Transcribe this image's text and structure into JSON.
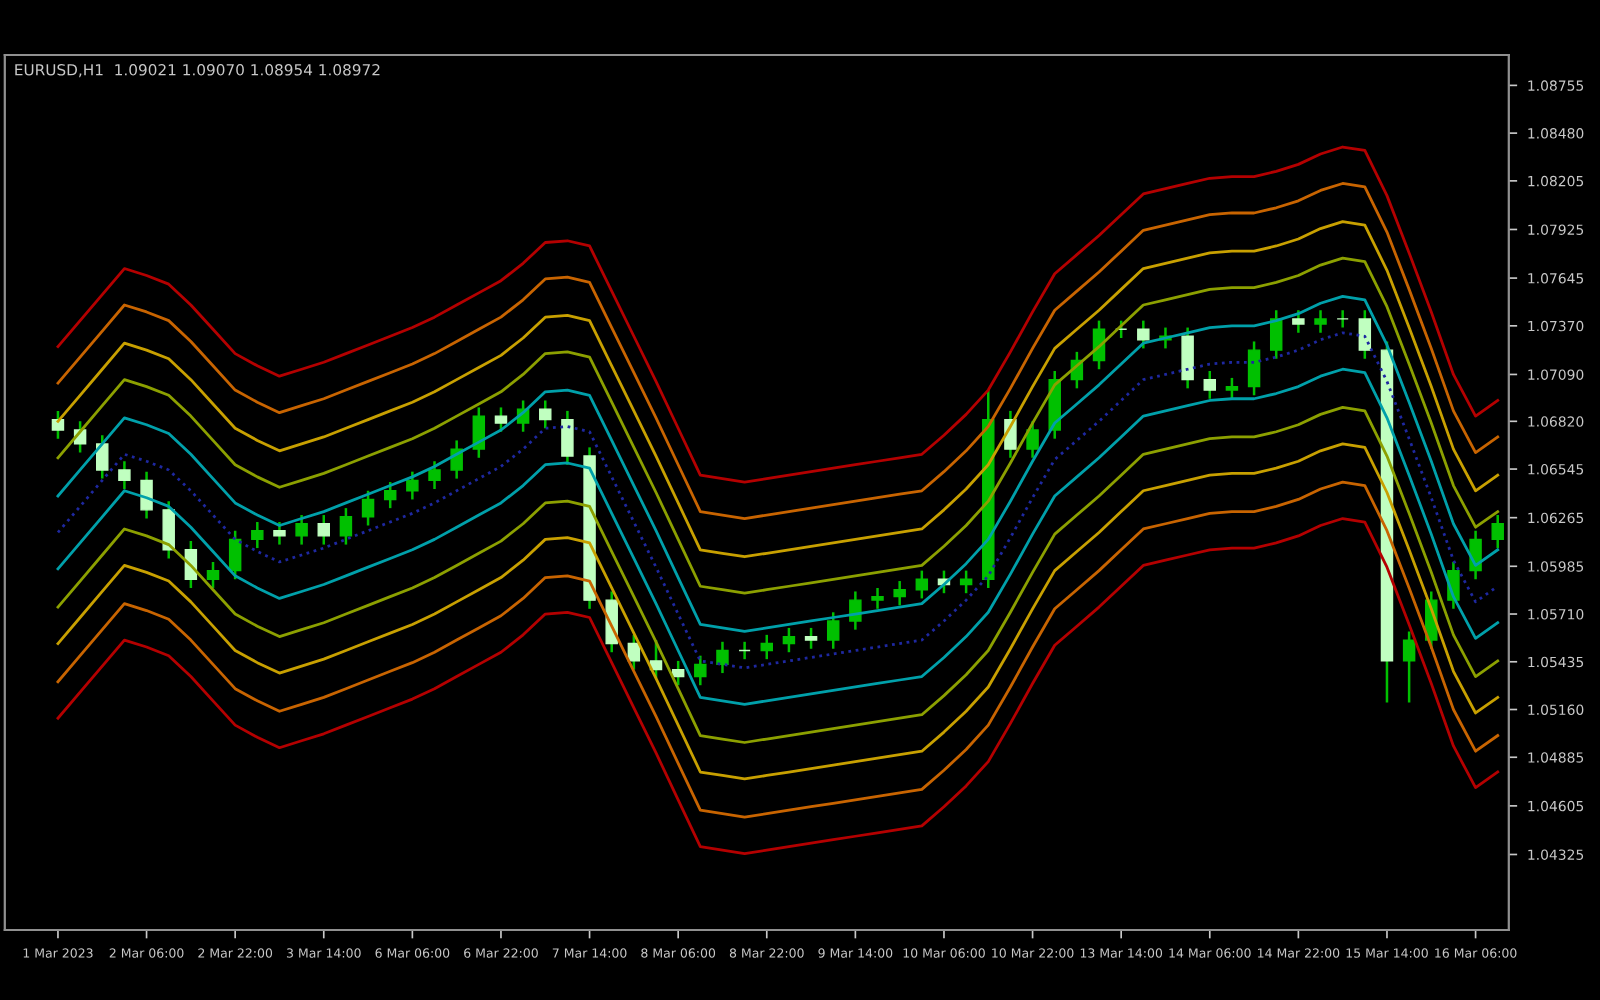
{
  "chart_data": {
    "type": "candlestick",
    "title": "EURUSD,H1  1.09021 1.09070 1.08954 1.08972",
    "categories": [
      "1 Mar 2023",
      null,
      null,
      null,
      "2 Mar 06:00",
      null,
      null,
      null,
      "2 Mar 22:00",
      null,
      null,
      null,
      "3 Mar 14:00",
      null,
      null,
      null,
      "6 Mar 06:00",
      null,
      null,
      null,
      "6 Mar 22:00",
      null,
      null,
      null,
      "7 Mar 14:00",
      null,
      null,
      null,
      "8 Mar 06:00",
      null,
      null,
      null,
      "8 Mar 22:00",
      null,
      null,
      null,
      "9 Mar 14:00",
      null,
      null,
      null,
      "10 Mar 06:00",
      null,
      null,
      null,
      "10 Mar 22:00",
      null,
      null,
      null,
      "13 Mar 14:00",
      null,
      null,
      null,
      "14 Mar 06:00",
      null,
      null,
      null,
      "14 Mar 22:00",
      null,
      null,
      null,
      "15 Mar 14:00",
      null,
      null,
      null,
      "16 Mar 06:00",
      null
    ],
    "ohlc": [
      [
        1.0683,
        1.0688,
        1.0672,
        1.0677
      ],
      [
        1.0677,
        1.0682,
        1.0664,
        1.0669
      ],
      [
        1.0669,
        1.0674,
        1.0649,
        1.0654
      ],
      [
        1.0654,
        1.0659,
        1.0643,
        1.0648
      ],
      [
        1.0648,
        1.0653,
        1.0626,
        1.0631
      ],
      [
        1.0631,
        1.0636,
        1.0603,
        1.0608
      ],
      [
        1.0608,
        1.0613,
        1.0586,
        1.0591
      ],
      [
        1.0591,
        1.0601,
        1.0586,
        1.0596
      ],
      [
        1.0596,
        1.0619,
        1.0591,
        1.0614
      ],
      [
        1.0614,
        1.0624,
        1.0609,
        1.0619
      ],
      [
        1.0619,
        1.0624,
        1.0611,
        1.0616
      ],
      [
        1.0616,
        1.0628,
        1.0611,
        1.0623
      ],
      [
        1.0623,
        1.0628,
        1.0611,
        1.0616
      ],
      [
        1.0616,
        1.0632,
        1.0611,
        1.0627
      ],
      [
        1.0627,
        1.0642,
        1.0622,
        1.0637
      ],
      [
        1.0637,
        1.0647,
        1.0632,
        1.0642
      ],
      [
        1.0642,
        1.0653,
        1.0637,
        1.0648
      ],
      [
        1.0648,
        1.0659,
        1.0643,
        1.0654
      ],
      [
        1.0654,
        1.0671,
        1.0649,
        1.0666
      ],
      [
        1.0666,
        1.069,
        1.0661,
        1.0685
      ],
      [
        1.0685,
        1.069,
        1.0676,
        1.0681
      ],
      [
        1.0681,
        1.0694,
        1.0676,
        1.0689
      ],
      [
        1.0689,
        1.0694,
        1.0678,
        1.0683
      ],
      [
        1.0683,
        1.0688,
        1.0657,
        1.0662
      ],
      [
        1.0662,
        1.0667,
        1.0574,
        1.0579
      ],
      [
        1.0579,
        1.0584,
        1.0549,
        1.0554
      ],
      [
        1.0554,
        1.0559,
        1.0539,
        1.0544
      ],
      [
        1.0544,
        1.0556,
        1.0534,
        1.0539
      ],
      [
        1.0539,
        1.0544,
        1.053,
        1.0535
      ],
      [
        1.0535,
        1.0547,
        1.053,
        1.0542
      ],
      [
        1.0542,
        1.0555,
        1.0537,
        1.055
      ],
      [
        1.055,
        1.0555,
        1.0545,
        1.055
      ],
      [
        1.055,
        1.0559,
        1.0545,
        1.0554
      ],
      [
        1.0554,
        1.0563,
        1.0549,
        1.0558
      ],
      [
        1.0558,
        1.0563,
        1.0551,
        1.0556
      ],
      [
        1.0556,
        1.0572,
        1.0551,
        1.0567
      ],
      [
        1.0567,
        1.0584,
        1.0562,
        1.0579
      ],
      [
        1.0579,
        1.0586,
        1.0574,
        1.0581
      ],
      [
        1.0581,
        1.059,
        1.0576,
        1.0585
      ],
      [
        1.0585,
        1.0596,
        1.058,
        1.0591
      ],
      [
        1.0591,
        1.0596,
        1.0583,
        1.0588
      ],
      [
        1.0588,
        1.0596,
        1.0583,
        1.0591
      ],
      [
        1.0591,
        1.07,
        1.0586,
        1.0683
      ],
      [
        1.0683,
        1.0688,
        1.0661,
        1.0666
      ],
      [
        1.0666,
        1.0682,
        1.0661,
        1.0677
      ],
      [
        1.0677,
        1.0711,
        1.0672,
        1.0706
      ],
      [
        1.0706,
        1.0722,
        1.0701,
        1.0717
      ],
      [
        1.0717,
        1.074,
        1.0712,
        1.0735
      ],
      [
        1.0735,
        1.074,
        1.073,
        1.0735
      ],
      [
        1.0735,
        1.074,
        1.0724,
        1.0729
      ],
      [
        1.0729,
        1.0736,
        1.0724,
        1.0731
      ],
      [
        1.0731,
        1.0736,
        1.0701,
        1.0706
      ],
      [
        1.0706,
        1.0711,
        1.0695,
        1.07
      ],
      [
        1.07,
        1.0707,
        1.0695,
        1.0702
      ],
      [
        1.0702,
        1.0728,
        1.0697,
        1.0723
      ],
      [
        1.0723,
        1.0746,
        1.0718,
        1.0741
      ],
      [
        1.0741,
        1.0746,
        1.0733,
        1.0738
      ],
      [
        1.0738,
        1.0746,
        1.0733,
        1.0741
      ],
      [
        1.0741,
        1.0746,
        1.0736,
        1.0741
      ],
      [
        1.0741,
        1.0746,
        1.0718,
        1.0723
      ],
      [
        1.0723,
        1.0728,
        1.052,
        1.0544
      ],
      [
        1.0544,
        1.0561,
        1.052,
        1.0556
      ],
      [
        1.0556,
        1.0584,
        1.0551,
        1.0579
      ],
      [
        1.0579,
        1.0601,
        1.0574,
        1.0596
      ],
      [
        1.0596,
        1.0619,
        1.0591,
        1.0614
      ],
      [
        1.0614,
        1.0628,
        1.0609,
        1.0623
      ]
    ],
    "colors": [
      "#c0ffc0",
      "#c0ffc0",
      "#c0ffc0",
      "#c0ffc0",
      "#c0ffc0",
      "#c0ffc0",
      "#c0ffc0",
      "#00c000",
      "#00c000",
      "#00c000",
      "#c0ffc0",
      "#00c000",
      "#c0ffc0",
      "#00c000",
      "#00c000",
      "#00c000",
      "#00c000",
      "#00c000",
      "#00c000",
      "#00c000",
      "#c0ffc0",
      "#00c000",
      "#c0ffc0",
      "#c0ffc0",
      "#c0ffc0",
      "#c0ffc0",
      "#c0ffc0",
      "#c0ffc0",
      "#c0ffc0",
      "#00c000",
      "#00c000",
      "#c0ffc0",
      "#00c000",
      "#00c000",
      "#c0ffc0",
      "#00c000",
      "#00c000",
      "#00c000",
      "#00c000",
      "#00c000",
      "#c0ffc0",
      "#00c000",
      "#00c000",
      "#c0ffc0",
      "#00c000",
      "#00c000",
      "#00c000",
      "#00c000",
      "#c0ffc0",
      "#c0ffc0",
      "#00c000",
      "#c0ffc0",
      "#c0ffc0",
      "#00c000",
      "#00c000",
      "#00c000",
      "#c0ffc0",
      "#00c000",
      "#c0ffc0",
      "#c0ffc0",
      "#c0ffc0",
      "#00c000",
      "#00c000",
      "#00c000",
      "#00c000",
      "#00c000"
    ],
    "series": [
      {
        "type": "line",
        "color": "#b40000",
        "values": [
          1.0725,
          1.074,
          1.0755,
          1.077,
          1.0766,
          1.0761,
          1.0749,
          1.0735,
          1.0721,
          1.0714,
          1.0708,
          1.0712,
          1.0716,
          1.0721,
          1.0726,
          1.0731,
          1.0736,
          1.0742,
          1.0749,
          1.0756,
          1.0763,
          1.0773,
          1.0785,
          1.0786,
          1.0783,
          1.0757,
          1.0731,
          1.0705,
          1.0678,
          1.0651,
          1.0649,
          1.0647,
          1.0649,
          1.0651,
          1.0653,
          1.0655,
          1.0657,
          1.0659,
          1.0661,
          1.0663,
          1.0674,
          1.0686,
          1.07,
          1.0722,
          1.0745,
          1.0767,
          1.0778,
          1.0789,
          1.0801,
          1.0813,
          1.0816,
          1.0819,
          1.0822,
          1.0823,
          1.0823,
          1.0826,
          1.083,
          1.0836,
          1.084,
          1.0838,
          1.0812,
          1.0779,
          1.0745,
          1.0709,
          1.0685,
          1.0694
        ]
      },
      {
        "type": "line",
        "color": "#c86400",
        "values": [
          1.0704,
          1.0719,
          1.0734,
          1.0749,
          1.0745,
          1.074,
          1.0728,
          1.0714,
          1.07,
          1.0693,
          1.0687,
          1.0691,
          1.0695,
          1.07,
          1.0705,
          1.071,
          1.0715,
          1.0721,
          1.0728,
          1.0735,
          1.0742,
          1.0752,
          1.0764,
          1.0765,
          1.0762,
          1.0736,
          1.071,
          1.0684,
          1.0657,
          1.063,
          1.0628,
          1.0626,
          1.0628,
          1.063,
          1.0632,
          1.0634,
          1.0636,
          1.0638,
          1.064,
          1.0642,
          1.0653,
          1.0665,
          1.0679,
          1.0701,
          1.0724,
          1.0746,
          1.0757,
          1.0768,
          1.078,
          1.0792,
          1.0795,
          1.0798,
          1.0801,
          1.0802,
          1.0802,
          1.0805,
          1.0809,
          1.0815,
          1.0819,
          1.0817,
          1.0791,
          1.0758,
          1.0724,
          1.0688,
          1.0664,
          1.0673
        ]
      },
      {
        "type": "line",
        "color": "#c8a000",
        "values": [
          1.0682,
          1.0697,
          1.0712,
          1.0727,
          1.0723,
          1.0718,
          1.0706,
          1.0692,
          1.0678,
          1.0671,
          1.0665,
          1.0669,
          1.0673,
          1.0678,
          1.0683,
          1.0688,
          1.0693,
          1.0699,
          1.0706,
          1.0713,
          1.072,
          1.073,
          1.0742,
          1.0743,
          1.074,
          1.0714,
          1.0688,
          1.0662,
          1.0635,
          1.0608,
          1.0606,
          1.0604,
          1.0606,
          1.0608,
          1.061,
          1.0612,
          1.0614,
          1.0616,
          1.0618,
          1.062,
          1.0631,
          1.0643,
          1.0657,
          1.0679,
          1.0702,
          1.0724,
          1.0735,
          1.0746,
          1.0758,
          1.077,
          1.0773,
          1.0776,
          1.0779,
          1.078,
          1.078,
          1.0783,
          1.0787,
          1.0793,
          1.0797,
          1.0795,
          1.0769,
          1.0736,
          1.0702,
          1.0666,
          1.0642,
          1.0651
        ]
      },
      {
        "type": "line",
        "color": "#8ca000",
        "values": [
          1.0661,
          1.0676,
          1.0691,
          1.0706,
          1.0702,
          1.0697,
          1.0685,
          1.0671,
          1.0657,
          1.065,
          1.0644,
          1.0648,
          1.0652,
          1.0657,
          1.0662,
          1.0667,
          1.0672,
          1.0678,
          1.0685,
          1.0692,
          1.0699,
          1.0709,
          1.0721,
          1.0722,
          1.0719,
          1.0693,
          1.0667,
          1.0641,
          1.0614,
          1.0587,
          1.0585,
          1.0583,
          1.0585,
          1.0587,
          1.0589,
          1.0591,
          1.0593,
          1.0595,
          1.0597,
          1.0599,
          1.061,
          1.0622,
          1.0636,
          1.0658,
          1.0681,
          1.0703,
          1.0714,
          1.0725,
          1.0737,
          1.0749,
          1.0752,
          1.0755,
          1.0758,
          1.0759,
          1.0759,
          1.0762,
          1.0766,
          1.0772,
          1.0776,
          1.0774,
          1.0748,
          1.0715,
          1.0681,
          1.0645,
          1.0621,
          1.063
        ]
      },
      {
        "type": "line",
        "color": "#00a0aa",
        "values": [
          1.0639,
          1.0654,
          1.0669,
          1.0684,
          1.068,
          1.0675,
          1.0663,
          1.0649,
          1.0635,
          1.0628,
          1.0622,
          1.0626,
          1.063,
          1.0635,
          1.064,
          1.0645,
          1.065,
          1.0656,
          1.0663,
          1.067,
          1.0677,
          1.0687,
          1.0699,
          1.07,
          1.0697,
          1.0671,
          1.0645,
          1.0619,
          1.0592,
          1.0565,
          1.0563,
          1.0561,
          1.0563,
          1.0565,
          1.0567,
          1.0569,
          1.0571,
          1.0573,
          1.0575,
          1.0577,
          1.0588,
          1.06,
          1.0614,
          1.0636,
          1.0659,
          1.0681,
          1.0692,
          1.0703,
          1.0715,
          1.0727,
          1.073,
          1.0733,
          1.0736,
          1.0737,
          1.0737,
          1.074,
          1.0744,
          1.075,
          1.0754,
          1.0752,
          1.0726,
          1.0693,
          1.0659,
          1.0623,
          1.0599,
          1.0608
        ]
      },
      {
        "type": "line",
        "color": "#1e28a0",
        "line_style": "dotted",
        "values": [
          1.0618,
          1.0633,
          1.0648,
          1.0663,
          1.0659,
          1.0654,
          1.0642,
          1.0628,
          1.0614,
          1.0607,
          1.0601,
          1.0605,
          1.0609,
          1.0614,
          1.0619,
          1.0624,
          1.0629,
          1.0635,
          1.0642,
          1.0649,
          1.0656,
          1.0666,
          1.0678,
          1.0679,
          1.0676,
          1.065,
          1.0624,
          1.0598,
          1.0571,
          1.0544,
          1.0542,
          1.054,
          1.0542,
          1.0544,
          1.0546,
          1.0548,
          1.055,
          1.0552,
          1.0554,
          1.0556,
          1.0567,
          1.0579,
          1.0593,
          1.0615,
          1.0638,
          1.066,
          1.0671,
          1.0682,
          1.0694,
          1.0706,
          1.0709,
          1.0712,
          1.0715,
          1.0716,
          1.0716,
          1.0719,
          1.0723,
          1.0729,
          1.0733,
          1.0731,
          1.0705,
          1.0672,
          1.0638,
          1.0602,
          1.0578,
          1.0587
        ]
      },
      {
        "type": "line",
        "color": "#00a0aa",
        "values": [
          1.0597,
          1.0612,
          1.0627,
          1.0642,
          1.0638,
          1.0633,
          1.0621,
          1.0607,
          1.0593,
          1.0586,
          1.058,
          1.0584,
          1.0588,
          1.0593,
          1.0598,
          1.0603,
          1.0608,
          1.0614,
          1.0621,
          1.0628,
          1.0635,
          1.0645,
          1.0657,
          1.0658,
          1.0655,
          1.0629,
          1.0603,
          1.0577,
          1.055,
          1.0523,
          1.0521,
          1.0519,
          1.0521,
          1.0523,
          1.0525,
          1.0527,
          1.0529,
          1.0531,
          1.0533,
          1.0535,
          1.0546,
          1.0558,
          1.0572,
          1.0594,
          1.0617,
          1.0639,
          1.065,
          1.0661,
          1.0673,
          1.0685,
          1.0688,
          1.0691,
          1.0694,
          1.0695,
          1.0695,
          1.0698,
          1.0702,
          1.0708,
          1.0712,
          1.071,
          1.0684,
          1.0651,
          1.0617,
          1.0581,
          1.0557,
          1.0566
        ]
      },
      {
        "type": "line",
        "color": "#8ca000",
        "values": [
          1.0575,
          1.059,
          1.0605,
          1.062,
          1.0616,
          1.0611,
          1.0599,
          1.0585,
          1.0571,
          1.0564,
          1.0558,
          1.0562,
          1.0566,
          1.0571,
          1.0576,
          1.0581,
          1.0586,
          1.0592,
          1.0599,
          1.0606,
          1.0613,
          1.0623,
          1.0635,
          1.0636,
          1.0633,
          1.0607,
          1.0581,
          1.0555,
          1.0528,
          1.0501,
          1.0499,
          1.0497,
          1.0499,
          1.0501,
          1.0503,
          1.0505,
          1.0507,
          1.0509,
          1.0511,
          1.0513,
          1.0524,
          1.0536,
          1.055,
          1.0572,
          1.0595,
          1.0617,
          1.0628,
          1.0639,
          1.0651,
          1.0663,
          1.0666,
          1.0669,
          1.0672,
          1.0673,
          1.0673,
          1.0676,
          1.068,
          1.0686,
          1.069,
          1.0688,
          1.0662,
          1.0629,
          1.0595,
          1.0559,
          1.0535,
          1.0544
        ]
      },
      {
        "type": "line",
        "color": "#c8a000",
        "values": [
          1.0554,
          1.0569,
          1.0584,
          1.0599,
          1.0595,
          1.059,
          1.0578,
          1.0564,
          1.055,
          1.0543,
          1.0537,
          1.0541,
          1.0545,
          1.055,
          1.0555,
          1.056,
          1.0565,
          1.0571,
          1.0578,
          1.0585,
          1.0592,
          1.0602,
          1.0614,
          1.0615,
          1.0612,
          1.0586,
          1.056,
          1.0534,
          1.0507,
          1.048,
          1.0478,
          1.0476,
          1.0478,
          1.048,
          1.0482,
          1.0484,
          1.0486,
          1.0488,
          1.049,
          1.0492,
          1.0503,
          1.0515,
          1.0529,
          1.0551,
          1.0574,
          1.0596,
          1.0607,
          1.0618,
          1.063,
          1.0642,
          1.0645,
          1.0648,
          1.0651,
          1.0652,
          1.0652,
          1.0655,
          1.0659,
          1.0665,
          1.0669,
          1.0667,
          1.0641,
          1.0608,
          1.0574,
          1.0538,
          1.0514,
          1.0523
        ]
      },
      {
        "type": "line",
        "color": "#c86400",
        "values": [
          1.0532,
          1.0547,
          1.0562,
          1.0577,
          1.0573,
          1.0568,
          1.0556,
          1.0542,
          1.0528,
          1.0521,
          1.0515,
          1.0519,
          1.0523,
          1.0528,
          1.0533,
          1.0538,
          1.0543,
          1.0549,
          1.0556,
          1.0563,
          1.057,
          1.058,
          1.0592,
          1.0593,
          1.059,
          1.0564,
          1.0538,
          1.0512,
          1.0485,
          1.0458,
          1.0456,
          1.0454,
          1.0456,
          1.0458,
          1.046,
          1.0462,
          1.0464,
          1.0466,
          1.0468,
          1.047,
          1.0481,
          1.0493,
          1.0507,
          1.0529,
          1.0552,
          1.0574,
          1.0585,
          1.0596,
          1.0608,
          1.062,
          1.0623,
          1.0626,
          1.0629,
          1.063,
          1.063,
          1.0633,
          1.0637,
          1.0643,
          1.0647,
          1.0645,
          1.0619,
          1.0586,
          1.0552,
          1.0516,
          1.0492,
          1.0501
        ]
      },
      {
        "type": "line",
        "color": "#b40000",
        "values": [
          1.0511,
          1.0526,
          1.0541,
          1.0556,
          1.0552,
          1.0547,
          1.0535,
          1.0521,
          1.0507,
          1.05,
          1.0494,
          1.0498,
          1.0502,
          1.0507,
          1.0512,
          1.0517,
          1.0522,
          1.0528,
          1.0535,
          1.0542,
          1.0549,
          1.0559,
          1.0571,
          1.0572,
          1.0569,
          1.0543,
          1.0517,
          1.0491,
          1.0464,
          1.0437,
          1.0435,
          1.0433,
          1.0435,
          1.0437,
          1.0439,
          1.0441,
          1.0443,
          1.0445,
          1.0447,
          1.0449,
          1.046,
          1.0472,
          1.0486,
          1.0508,
          1.0531,
          1.0553,
          1.0564,
          1.0575,
          1.0587,
          1.0599,
          1.0602,
          1.0605,
          1.0608,
          1.0609,
          1.0609,
          1.0612,
          1.0616,
          1.0622,
          1.0626,
          1.0624,
          1.0598,
          1.0565,
          1.0531,
          1.0495,
          1.0471,
          1.048
        ]
      }
    ],
    "ylim": [
      1.0389,
      1.0893
    ],
    "yticks": [
      {
        "value": 1.08755,
        "label": "1.08755"
      },
      {
        "value": 1.0848,
        "label": "1.08480"
      },
      {
        "value": 1.08205,
        "label": "1.08205"
      },
      {
        "value": 1.07925,
        "label": "1.07925"
      },
      {
        "value": 1.07645,
        "label": "1.07645"
      },
      {
        "value": 1.0737,
        "label": "1.07370"
      },
      {
        "value": 1.0709,
        "label": "1.07090"
      },
      {
        "value": 1.0682,
        "label": "1.06820"
      },
      {
        "value": 1.06545,
        "label": "1.06545"
      },
      {
        "value": 1.06265,
        "label": "1.06265"
      },
      {
        "value": 1.05985,
        "label": "1.05985"
      },
      {
        "value": 1.0571,
        "label": "1.05710"
      },
      {
        "value": 1.05435,
        "label": "1.05435"
      },
      {
        "value": 1.0516,
        "label": "1.05160"
      },
      {
        "value": 1.04885,
        "label": "1.04885"
      },
      {
        "value": 1.04605,
        "label": "1.04605"
      },
      {
        "value": 1.04325,
        "label": "1.04325"
      }
    ],
    "grid": false,
    "legend": false
  }
}
